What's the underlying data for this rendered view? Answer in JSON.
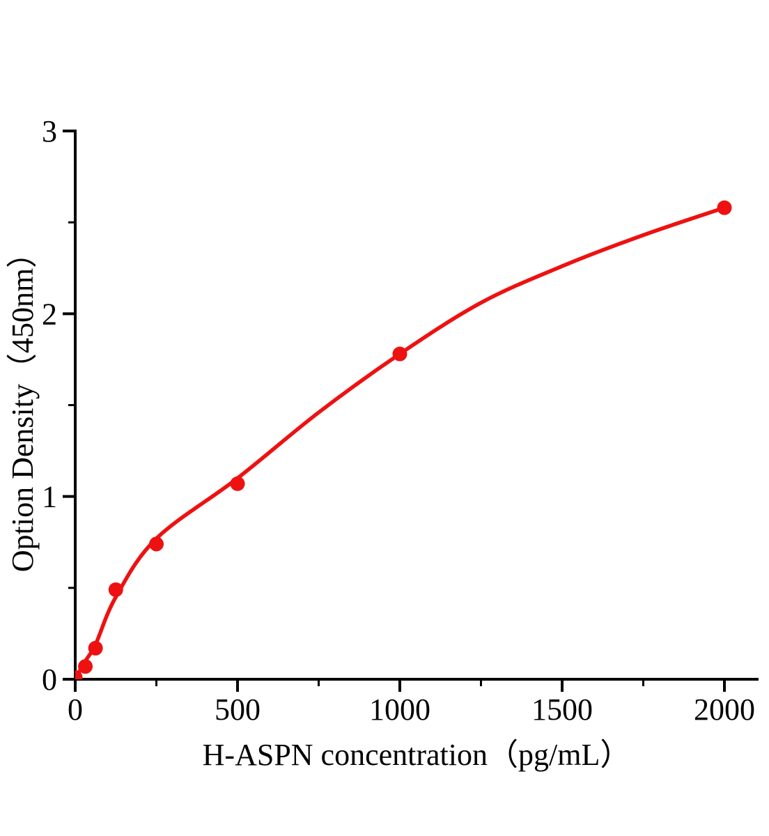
{
  "chart_data": {
    "type": "scatter",
    "title": "",
    "xlabel": "H-ASPN concentration（pg/mL）",
    "ylabel": "Option Density（450nm）",
    "xlim": [
      0,
      2105
    ],
    "ylim": [
      0,
      3
    ],
    "grid": false,
    "legend": null,
    "axis_color": "#000000",
    "series_color": "#ee1111",
    "x_major_ticks": [
      {
        "value": 0,
        "label": "0"
      },
      {
        "value": 500,
        "label": "500"
      },
      {
        "value": 1000,
        "label": "1000"
      },
      {
        "value": 1500,
        "label": "1500"
      },
      {
        "value": 2000,
        "label": "2000"
      }
    ],
    "x_minor_ticks": [
      250,
      750,
      1250,
      1750
    ],
    "y_major_ticks": [
      {
        "value": 0,
        "label": "0"
      },
      {
        "value": 1,
        "label": "1"
      },
      {
        "value": 2,
        "label": "2"
      },
      {
        "value": 3,
        "label": "3"
      }
    ],
    "y_minor_ticks": [
      0.5,
      1.5,
      2.5
    ],
    "points": [
      {
        "x": 0,
        "y": 0.01
      },
      {
        "x": 31.25,
        "y": 0.07
      },
      {
        "x": 62.5,
        "y": 0.17
      },
      {
        "x": 125,
        "y": 0.49
      },
      {
        "x": 250,
        "y": 0.74
      },
      {
        "x": 500,
        "y": 1.07
      },
      {
        "x": 1000,
        "y": 1.78
      },
      {
        "x": 2000,
        "y": 2.58
      }
    ],
    "fit_curve": [
      {
        "x": 0,
        "y": 0.0
      },
      {
        "x": 31.25,
        "y": 0.1
      },
      {
        "x": 62.5,
        "y": 0.19
      },
      {
        "x": 125,
        "y": 0.45
      },
      {
        "x": 250,
        "y": 0.77
      },
      {
        "x": 500,
        "y": 1.1
      },
      {
        "x": 750,
        "y": 1.46
      },
      {
        "x": 1000,
        "y": 1.78
      },
      {
        "x": 1250,
        "y": 2.06
      },
      {
        "x": 1500,
        "y": 2.26
      },
      {
        "x": 1750,
        "y": 2.43
      },
      {
        "x": 2000,
        "y": 2.58
      }
    ]
  }
}
